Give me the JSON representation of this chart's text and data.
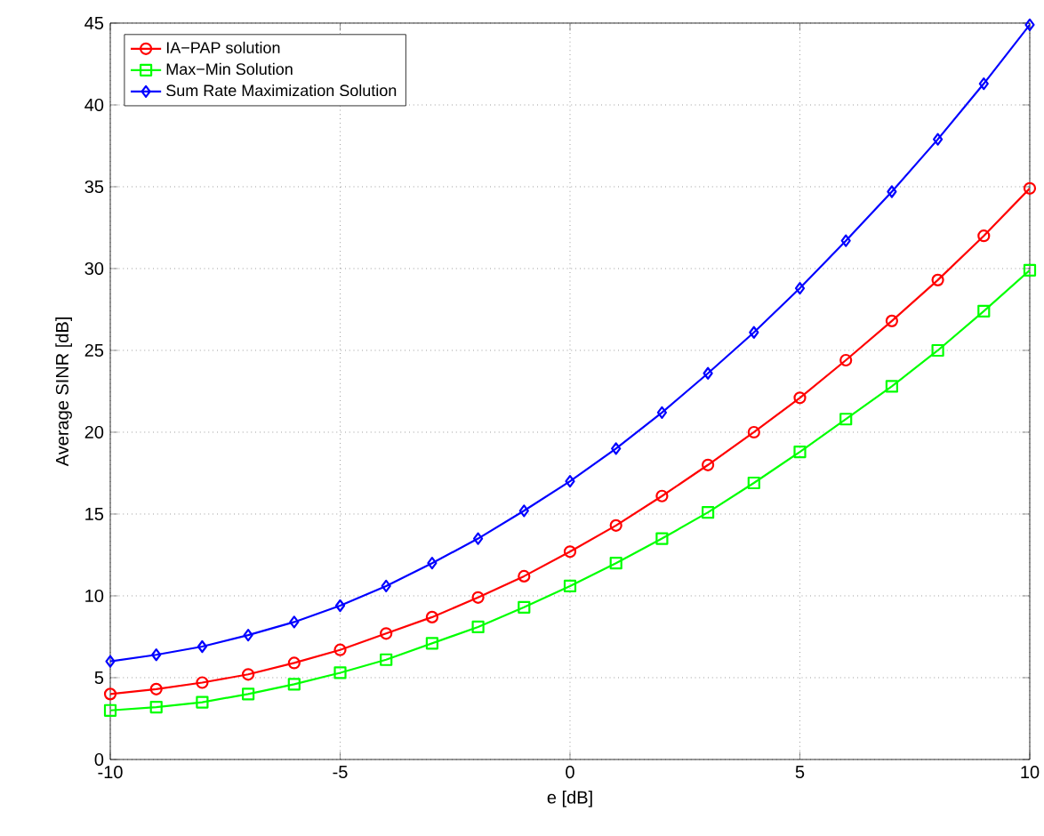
{
  "chart_data": {
    "type": "line",
    "xlabel": "e [dB]",
    "ylabel": "Average SINR [dB]",
    "x": [
      -10,
      -9,
      -8,
      -7,
      -6,
      -5,
      -4,
      -3,
      -2,
      -1,
      0,
      1,
      2,
      3,
      4,
      5,
      6,
      7,
      8,
      9,
      10
    ],
    "series": [
      {
        "name": "IA−PAP solution",
        "color": "#ff0000",
        "marker": "circle",
        "values": [
          4.0,
          4.3,
          4.7,
          5.2,
          5.9,
          6.7,
          7.7,
          8.7,
          9.9,
          11.2,
          12.7,
          14.3,
          16.1,
          18.0,
          20.0,
          22.1,
          24.4,
          26.8,
          29.3,
          32.0,
          34.9
        ]
      },
      {
        "name": "Max−Min Solution",
        "color": "#00ff00",
        "marker": "square",
        "values": [
          3.0,
          3.2,
          3.5,
          4.0,
          4.6,
          5.3,
          6.1,
          7.1,
          8.1,
          9.3,
          10.6,
          12.0,
          13.5,
          15.1,
          16.9,
          18.8,
          20.8,
          22.8,
          25.0,
          27.4,
          29.9
        ]
      },
      {
        "name": "Sum Rate Maximization Solution",
        "color": "#0000ff",
        "marker": "diamond",
        "values": [
          6.0,
          6.4,
          6.9,
          7.6,
          8.4,
          9.4,
          10.6,
          12.0,
          13.5,
          15.2,
          17.0,
          19.0,
          21.2,
          23.6,
          26.1,
          28.8,
          31.7,
          34.7,
          37.9,
          41.3,
          44.9
        ]
      }
    ],
    "xlim": [
      -10,
      10
    ],
    "ylim": [
      0,
      45
    ],
    "xticks": [
      -10,
      -5,
      0,
      5,
      10
    ],
    "yticks": [
      0,
      5,
      10,
      15,
      20,
      25,
      30,
      35,
      40,
      45
    ],
    "grid": true,
    "legend": "top left",
    "line_style": "solid"
  }
}
